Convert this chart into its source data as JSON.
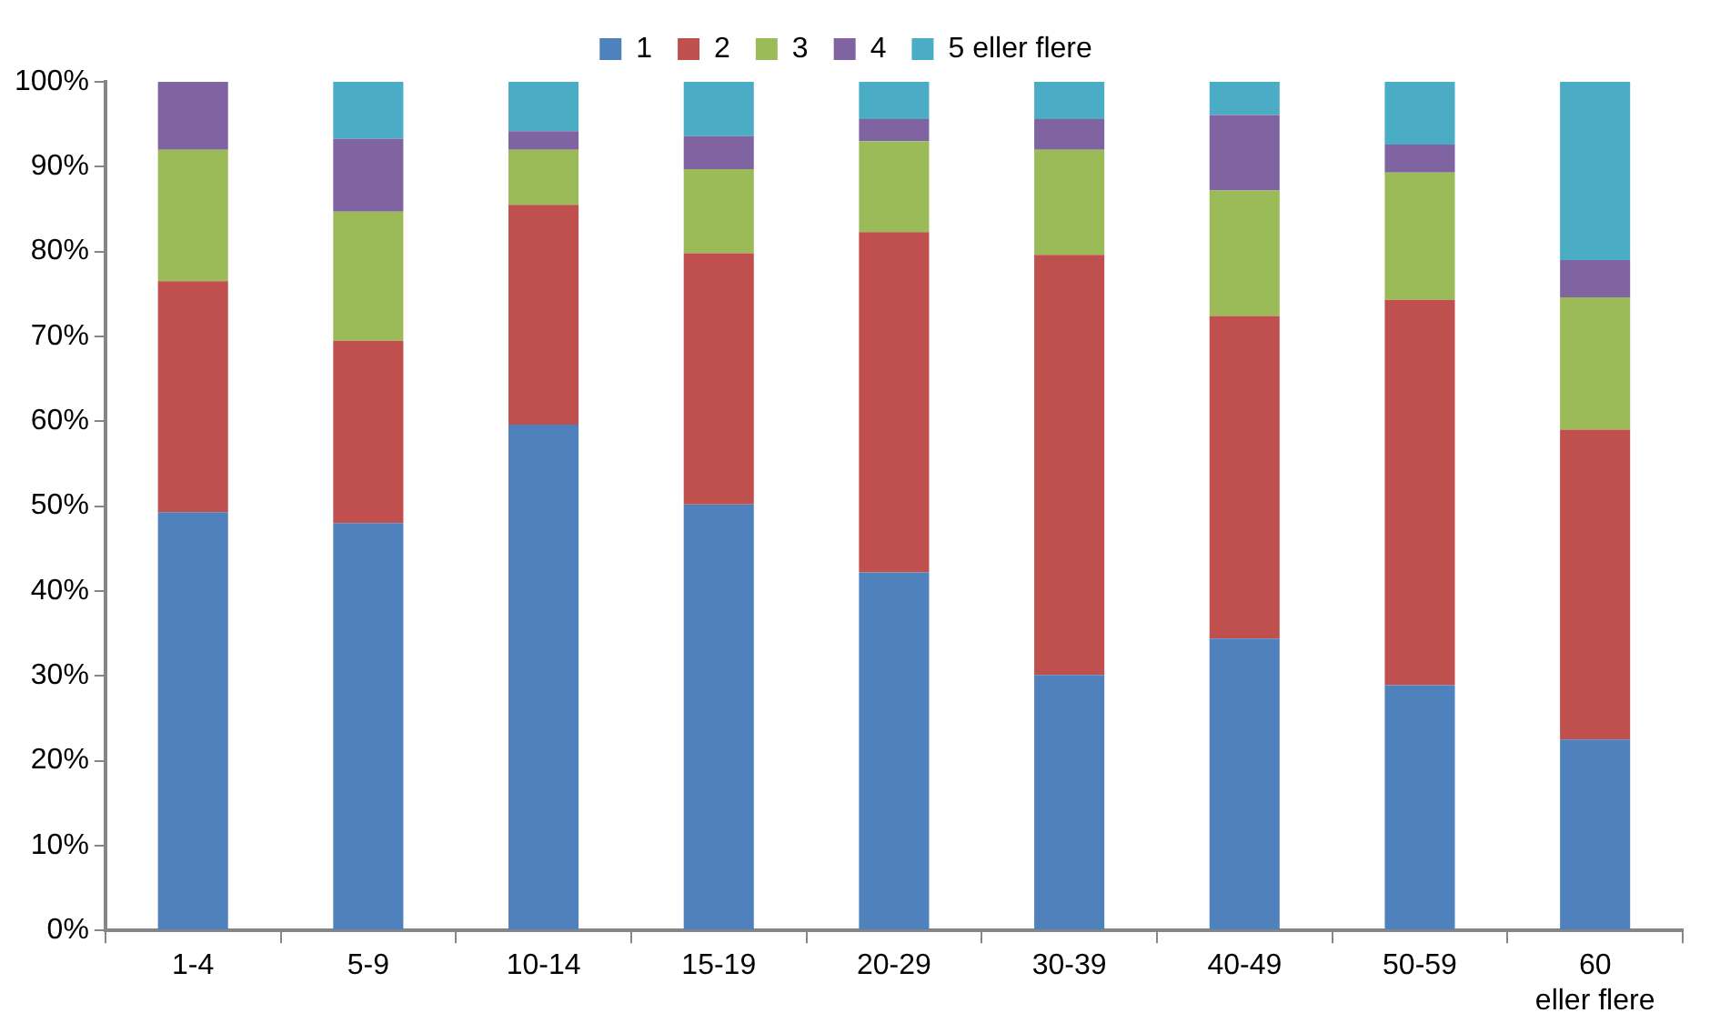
{
  "chart_data": {
    "type": "bar",
    "stacked": true,
    "legend": "top",
    "grid": false,
    "categories": [
      "1-4",
      "5-9",
      "10-14",
      "15-19",
      "20-29",
      "30-39",
      "40-49",
      "50-59",
      "60 eller flere"
    ],
    "ylim": [
      0,
      100
    ],
    "yticks": [
      {
        "value": 0,
        "label": "0%"
      },
      {
        "value": 10,
        "label": "10%"
      },
      {
        "value": 20,
        "label": "20%"
      },
      {
        "value": 30,
        "label": "30%"
      },
      {
        "value": 40,
        "label": "40%"
      },
      {
        "value": 50,
        "label": "50%"
      },
      {
        "value": 60,
        "label": "60%"
      },
      {
        "value": 70,
        "label": "70%"
      },
      {
        "value": 80,
        "label": "80%"
      },
      {
        "value": 90,
        "label": "90%"
      },
      {
        "value": 100,
        "label": "100%"
      }
    ],
    "series": [
      {
        "name": "1",
        "color": "#4f81bd",
        "values": [
          49.3,
          48,
          59.6,
          50.2,
          42.2,
          30.1,
          34.4,
          28.9,
          22.5
        ]
      },
      {
        "name": "2",
        "color": "#c0504d",
        "values": [
          27.2,
          21.5,
          25.9,
          29.6,
          40.1,
          49.5,
          38,
          45.4,
          36.5
        ]
      },
      {
        "name": "3",
        "color": "#9bbb59",
        "values": [
          15.5,
          15.2,
          6.5,
          9.9,
          10.7,
          12.4,
          14.8,
          15,
          15.6
        ]
      },
      {
        "name": "4",
        "color": "#8064a2",
        "values": [
          8,
          8.6,
          2.2,
          3.9,
          2.6,
          3.6,
          8.9,
          3.3,
          4.4
        ]
      },
      {
        "name": "5 eller flere",
        "color": "#4bacc6",
        "values": [
          0,
          6.7,
          5.8,
          6.4,
          4.4,
          4.4,
          3.9,
          7.4,
          21
        ]
      }
    ]
  }
}
